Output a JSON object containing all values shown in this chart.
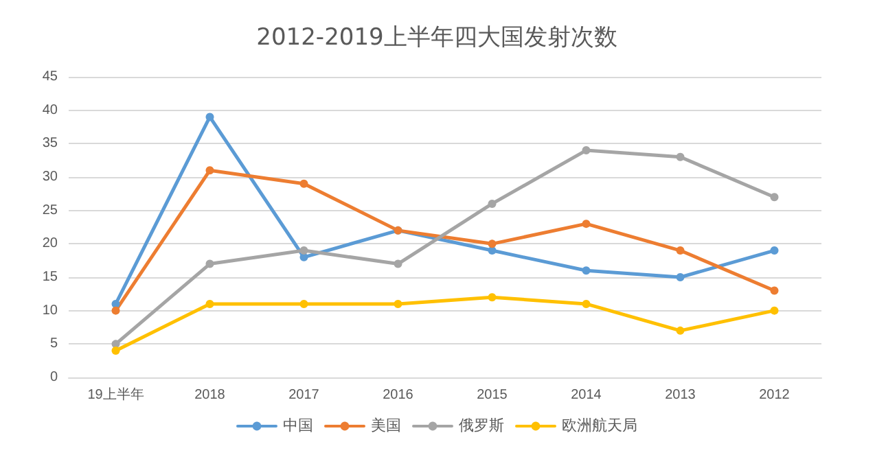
{
  "chart_data": {
    "type": "line",
    "title": "2012-2019上半年四大国发射次数",
    "categories": [
      "19上半年",
      "2018",
      "2017",
      "2016",
      "2015",
      "2014",
      "2013",
      "2012"
    ],
    "series": [
      {
        "name": "中国",
        "color": "#5b9bd5",
        "values": [
          11,
          39,
          18,
          22,
          19,
          16,
          15,
          19
        ]
      },
      {
        "name": "美国",
        "color": "#ed7d31",
        "values": [
          10,
          31,
          29,
          22,
          20,
          23,
          19,
          13
        ]
      },
      {
        "name": "俄罗斯",
        "color": "#a5a5a5",
        "values": [
          5,
          17,
          19,
          17,
          26,
          34,
          33,
          27
        ]
      },
      {
        "name": "欧洲航天局",
        "color": "#ffc000",
        "values": [
          4,
          11,
          11,
          11,
          12,
          11,
          7,
          10
        ]
      }
    ],
    "ylim": [
      0,
      45
    ],
    "yticks": [
      0,
      5,
      10,
      15,
      20,
      25,
      30,
      35,
      40,
      45
    ],
    "grid": "y",
    "legend": "bottom",
    "marker": "circle",
    "line_style": "solid"
  }
}
